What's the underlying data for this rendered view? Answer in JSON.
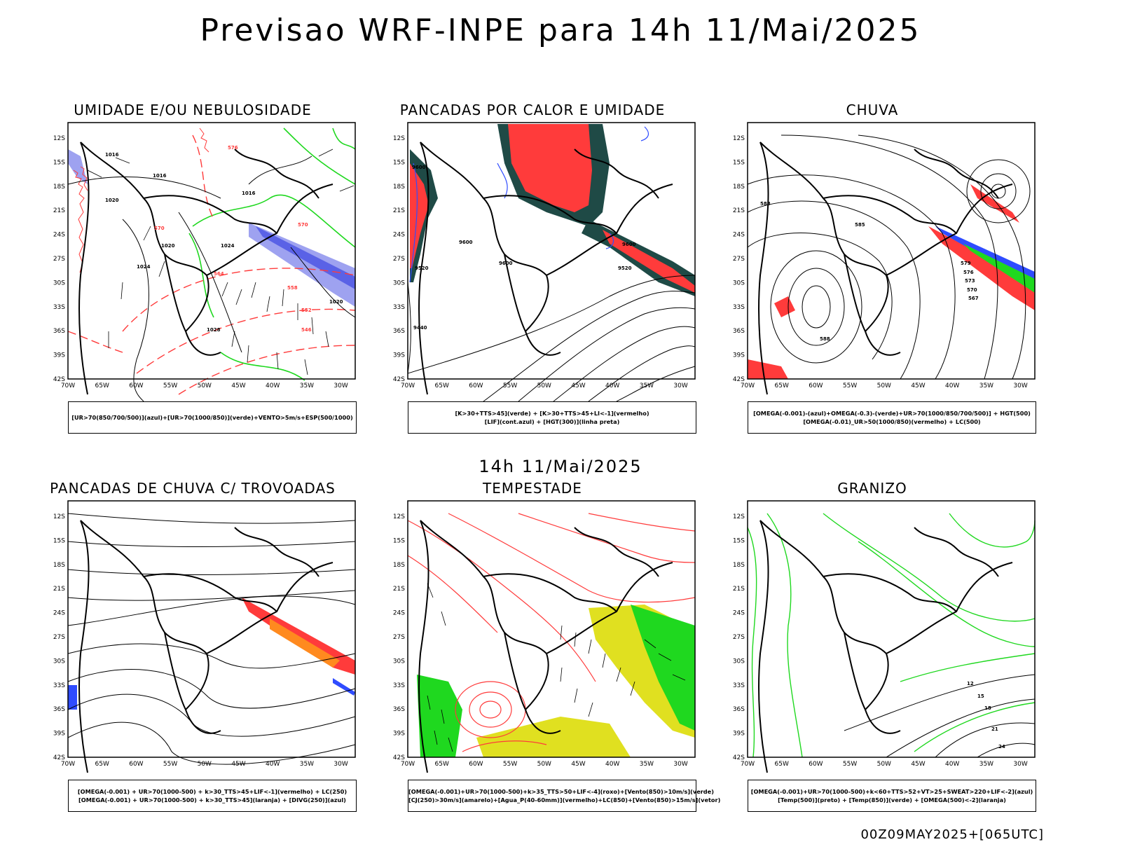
{
  "title": "Previsao WRF-INPE  para 14h 11/Mai/2025",
  "mid_title": "14h 11/Mai/2025",
  "footer": "00Z09MAY2025+[065UTC]",
  "axes": {
    "lat_ticks": [
      "12S",
      "15S",
      "18S",
      "21S",
      "24S",
      "27S",
      "30S",
      "33S",
      "36S",
      "39S",
      "42S"
    ],
    "lon_ticks": [
      "70W",
      "65W",
      "60W",
      "55W",
      "50W",
      "45W",
      "40W",
      "35W",
      "30W"
    ]
  },
  "colors": {
    "red": "#ff3b3b",
    "blue": "#2f4cff",
    "green": "#1fd81f",
    "darkteal": "#1f4a46",
    "orange": "#ff8a1f",
    "yellow": "#e0e020",
    "lavender": "#9ea2f0"
  },
  "panels": [
    {
      "title": "UMIDADE E/OU NEBULOSIDADE",
      "legend": [
        "[UR>70(850/700/500)](azul)+[UR>70(1000/850)](verde)+VENTO>5m/s+ESP(500/1000)"
      ]
    },
    {
      "title": "PANCADAS POR CALOR E UMIDADE",
      "legend": [
        "[K>30+TTS>45](verde) + [K>30+TTS>45+LI<-1](vermelho)",
        "[LIF](cont.azul) + [HGT(300)](linha preta)"
      ]
    },
    {
      "title": "CHUVA",
      "legend": [
        "[OMEGA(-0.001)-(azul)+OMEGA(-0.3)-(verde)+UR>70(1000/850/700/500)] + HGT(500)",
        "[OMEGA(-0.01)_UR>50(1000/850)(vermelho) + LC(500)"
      ]
    },
    {
      "title": "PANCADAS DE CHUVA C/ TROVOADAS",
      "legend": [
        "[OMEGA(-0.001) + UR>70(1000-500) + k>30_TTS>45+LIF<-1](vermelho) + LC(250)",
        "[OMEGA(-0.001) + UR>70(1000-500) + k>30_TTS>45](laranja) + [DIVG(250)](azul)"
      ]
    },
    {
      "title": "TEMPESTADE",
      "legend": [
        "[OMEGA(-0.001)+UR>70(1000-500)+k>35_TTS>50+LIF<-4](roxo)+[Vento(850)>10m/s](verde)",
        "[CJ(250)>30m/s](amarelo)+[Agua_P(40-60mm)](vermelho)+LC(850)+[Vento(850)>15m/s](vetor)"
      ]
    },
    {
      "title": "GRANIZO",
      "legend": [
        "[OMEGA(-0.001)+UR>70(1000-500)+k<60+TTS>52+VT>25+SWEAT>220+LIF<-2](azul)",
        "[Temp(500)](preto) + [Temp(850)](verde) + [OMEGA(500)<-2](laranja)"
      ]
    }
  ],
  "contour_labels": {
    "p0": [
      "1016",
      "1016",
      "1020",
      "1024",
      "1020",
      "1016",
      "1024",
      "1028",
      "1020",
      "570",
      "576",
      "570",
      "564",
      "558",
      "552",
      "546"
    ],
    "p1": [
      "9600",
      "9600",
      "9520",
      "9440",
      "9600",
      "9520",
      "9600"
    ],
    "p2": [
      "588",
      "585",
      "579",
      "576",
      "573",
      "570",
      "567",
      "588"
    ],
    "p5": [
      "12",
      "15",
      "18",
      "21",
      "24"
    ]
  }
}
